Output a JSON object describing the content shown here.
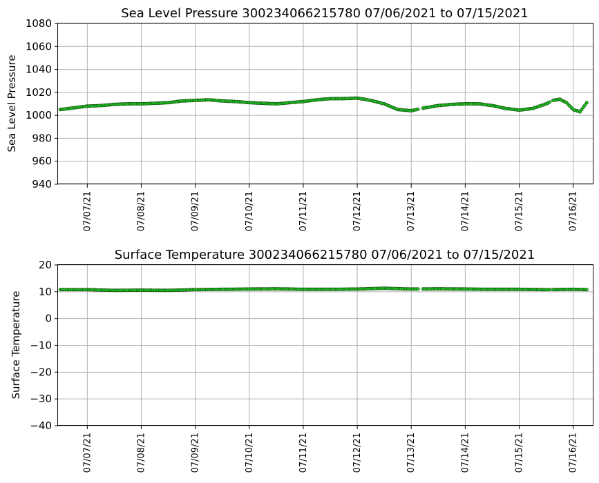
{
  "chart_data": [
    {
      "type": "scatter",
      "title": "Sea Level Pressure 300234066215780  07/06/2021 to 07/15/2021",
      "xlabel": "",
      "ylabel": "Sea Level Pressure",
      "ylim": [
        940,
        1080
      ],
      "yticks": [
        "940",
        "960",
        "980",
        "1000",
        "1020",
        "1040",
        "1060",
        "1080"
      ],
      "xlim": [
        "2021-07-06 11:00",
        "2021-07-16 09:00"
      ],
      "xticks": [
        "07/07/21",
        "07/08/21",
        "07/09/21",
        "07/10/21",
        "07/11/21",
        "07/12/21",
        "07/13/21",
        "07/14/21",
        "07/15/21",
        "07/16/21"
      ],
      "grid": true,
      "marker_color": "#22c422",
      "marker_edge_color": "#0a3a0a",
      "series": [
        {
          "x": [
            "2021-07-06 12:00",
            "2021-07-06 18:00",
            "2021-07-07 00:00",
            "2021-07-07 06:00",
            "2021-07-07 12:00",
            "2021-07-07 18:00",
            "2021-07-08 00:00",
            "2021-07-08 06:00",
            "2021-07-08 12:00",
            "2021-07-08 18:00",
            "2021-07-09 00:00",
            "2021-07-09 06:00",
            "2021-07-09 12:00",
            "2021-07-09 18:00",
            "2021-07-10 00:00",
            "2021-07-10 06:00",
            "2021-07-10 12:00",
            "2021-07-10 18:00",
            "2021-07-11 00:00",
            "2021-07-11 06:00",
            "2021-07-11 12:00",
            "2021-07-11 18:00",
            "2021-07-12 00:00",
            "2021-07-12 06:00",
            "2021-07-12 09:00",
            "2021-07-12 12:00",
            "2021-07-12 18:00",
            "2021-07-13 00:00",
            "2021-07-13 06:00",
            "2021-07-13 12:00",
            "2021-07-13 18:00",
            "2021-07-14 00:00",
            "2021-07-14 06:00",
            "2021-07-14 12:00",
            "2021-07-14 18:00",
            "2021-07-15 00:00",
            "2021-07-15 06:00",
            "2021-07-15 12:00",
            "2021-07-15 15:00",
            "2021-07-15 18:00",
            "2021-07-15 21:00",
            "2021-07-16 00:00",
            "2021-07-16 03:00",
            "2021-07-16 06:00"
          ],
          "y": [
            1005,
            1006.5,
            1008,
            1008.5,
            1009.5,
            1010,
            1010,
            1010.5,
            1011,
            1012.5,
            1013,
            1013.5,
            1012.5,
            1012,
            1011,
            1010.5,
            1010,
            1011,
            1012,
            1013.5,
            1014.5,
            1014.5,
            1015,
            1013,
            1011.5,
            1010,
            1005,
            1004,
            1006.5,
            1008.5,
            1009.5,
            1010,
            1010,
            1008.5,
            1006,
            1004.5,
            1006,
            1010,
            1013,
            1014,
            1011,
            1005,
            1003,
            1011
          ]
        }
      ]
    },
    {
      "type": "scatter",
      "title": "Surface Temperature 300234066215780  07/06/2021 to 07/15/2021",
      "xlabel": "",
      "ylabel": "Surface Temperature",
      "ylim": [
        -40,
        20
      ],
      "yticks": [
        "−40",
        "−30",
        "−20",
        "−10",
        "0",
        "10",
        "20"
      ],
      "xlim": [
        "2021-07-06 11:00",
        "2021-07-16 09:00"
      ],
      "xticks": [
        "07/07/21",
        "07/08/21",
        "07/09/21",
        "07/10/21",
        "07/11/21",
        "07/12/21",
        "07/13/21",
        "07/14/21",
        "07/15/21",
        "07/16/21"
      ],
      "grid": true,
      "marker_color": "#22c422",
      "marker_edge_color": "#0a3a0a",
      "series": [
        {
          "x": [
            "2021-07-06 12:00",
            "2021-07-07 00:00",
            "2021-07-07 12:00",
            "2021-07-08 00:00",
            "2021-07-08 12:00",
            "2021-07-09 00:00",
            "2021-07-09 12:00",
            "2021-07-10 00:00",
            "2021-07-10 12:00",
            "2021-07-11 00:00",
            "2021-07-11 12:00",
            "2021-07-12 00:00",
            "2021-07-12 12:00",
            "2021-07-13 00:00",
            "2021-07-13 12:00",
            "2021-07-14 00:00",
            "2021-07-14 12:00",
            "2021-07-15 00:00",
            "2021-07-15 12:00",
            "2021-07-16 00:00",
            "2021-07-16 06:00"
          ],
          "y": [
            10.8,
            10.8,
            10.5,
            10.6,
            10.5,
            10.8,
            10.9,
            11.0,
            11.1,
            10.9,
            10.9,
            11.0,
            11.3,
            11.0,
            11.1,
            11.0,
            10.9,
            10.9,
            10.8,
            10.9,
            10.8
          ]
        }
      ]
    }
  ]
}
